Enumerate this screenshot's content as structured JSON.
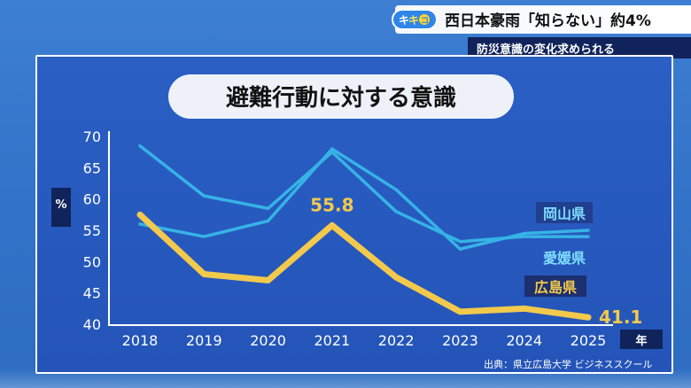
{
  "header": {
    "logo_text_1": "キ",
    "logo_text_2": "キ",
    "logo_text_3": "コ",
    "headline": "西日本豪雨「知らない」約4%",
    "subhead": "防災意識の変化求められる"
  },
  "chart_data": {
    "type": "line",
    "title": "避難行動に対する意識",
    "ylabel": "%",
    "xlabel": "年",
    "ylim": [
      40,
      70
    ],
    "yticks": [
      70,
      65,
      60,
      55,
      50,
      45,
      40
    ],
    "categories": [
      "2018",
      "2019",
      "2020",
      "2021",
      "2022",
      "2023",
      "2024",
      "2025"
    ],
    "series": [
      {
        "name": "岡山県",
        "color": "#36b3e6",
        "values": [
          68.5,
          60.5,
          58.5,
          67.5,
          58,
          53.2,
          54,
          54
        ]
      },
      {
        "name": "愛媛県",
        "color": "#36b3e6",
        "values": [
          56,
          54,
          56.5,
          68,
          61.5,
          52,
          54.5,
          55
        ]
      },
      {
        "name": "広島県",
        "color": "#f2c94c",
        "values": [
          57.5,
          48,
          47,
          55.8,
          47.5,
          42,
          42.5,
          41.1
        ]
      }
    ],
    "annotations": [
      {
        "series": "広島県",
        "year": "2021",
        "text": "55.8"
      },
      {
        "series": "広島県",
        "year": "2025",
        "text": "41.1"
      }
    ],
    "grid": false,
    "legend": "inline-right"
  },
  "footer": {
    "source": "出典：県立広島大学 ビジネススクール"
  }
}
